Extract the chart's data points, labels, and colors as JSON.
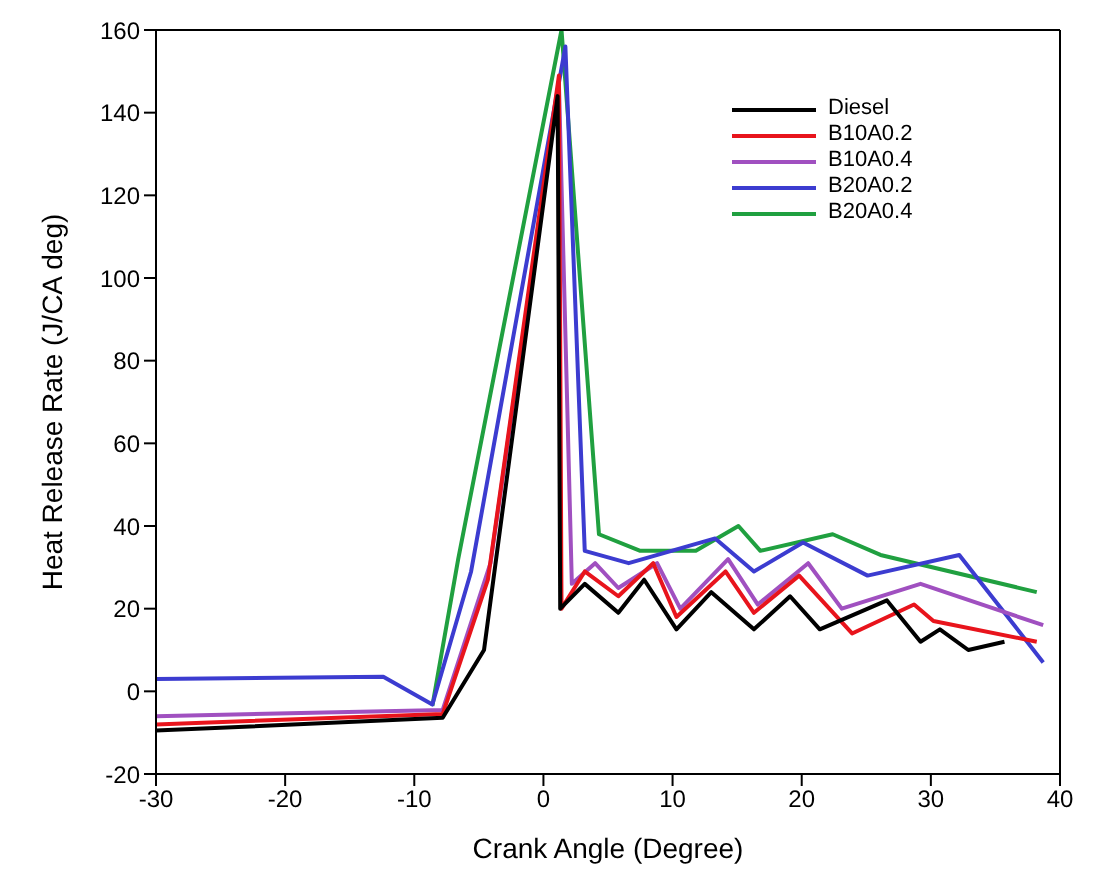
{
  "chart_data": {
    "type": "line",
    "xlabel": "Crank Angle (Degree)",
    "ylabel": "Heat Release Rate (J/CA deg)",
    "xlim": [
      -30,
      40
    ],
    "xticks": [
      -30,
      -20,
      -10,
      0,
      10,
      20,
      30,
      40
    ],
    "ylim": [
      -20,
      160
    ],
    "yticks": [
      -20,
      0,
      20,
      40,
      60,
      80,
      100,
      120,
      140,
      160
    ],
    "grid": false,
    "legend": "top right",
    "marker": "none",
    "line_style": "solid",
    "series": [
      {
        "name": "Diesel",
        "color": "#000000",
        "x": [
          -30,
          -7.8,
          -4.6,
          1.1,
          1.3,
          3.2,
          5.8,
          7.8,
          10.3,
          13,
          16.3,
          19.1,
          21.4,
          26.6,
          29.2,
          30.7,
          32.9,
          35.7
        ],
        "values": [
          -9.5,
          -6.4,
          10,
          144,
          20,
          26,
          19,
          27,
          15,
          24,
          15,
          23,
          15,
          22,
          12,
          15,
          10,
          12
        ]
      },
      {
        "name": "B10A0.2",
        "color": "#e8141c",
        "x": [
          -30,
          -7.8,
          -4.3,
          1.2,
          1.4,
          3.2,
          5.8,
          8.5,
          10.3,
          14.1,
          16.3,
          19.8,
          23.9,
          28.7,
          30.2,
          38.2
        ],
        "values": [
          -8,
          -5.5,
          27,
          149,
          20,
          29,
          23,
          31,
          18,
          29,
          19,
          28,
          14,
          21,
          17,
          12
        ]
      },
      {
        "name": "B10A0.4",
        "color": "#a050c0",
        "x": [
          -30,
          -7.8,
          -4.1,
          1.2,
          2.2,
          4,
          5.8,
          8.8,
          10.6,
          14.3,
          16.6,
          20.5,
          23.1,
          29.2,
          38.7
        ],
        "values": [
          -6,
          -4.5,
          31,
          147,
          26,
          31,
          25,
          31,
          20,
          32,
          21,
          31,
          20,
          26,
          16
        ]
      },
      {
        "name": "B20A0.2",
        "color": "#3c3cd0",
        "x": [
          -30,
          -12.4,
          -8.6,
          -5.6,
          1.7,
          3.2,
          6.6,
          13.3,
          16.3,
          20.1,
          25.1,
          32.2,
          38.7
        ],
        "values": [
          3,
          3.5,
          -3.2,
          29,
          156,
          34,
          31,
          37,
          29,
          36,
          28,
          33,
          7
        ]
      },
      {
        "name": "B20A0.4",
        "color": "#20a040",
        "x": [
          -8.6,
          -6.6,
          1.4,
          4.3,
          7.5,
          11.8,
          15.1,
          16.8,
          22.4,
          26.1,
          38.2
        ],
        "values": [
          -3.5,
          32,
          160,
          38,
          34,
          34,
          40,
          34,
          38,
          33,
          24
        ]
      }
    ]
  }
}
